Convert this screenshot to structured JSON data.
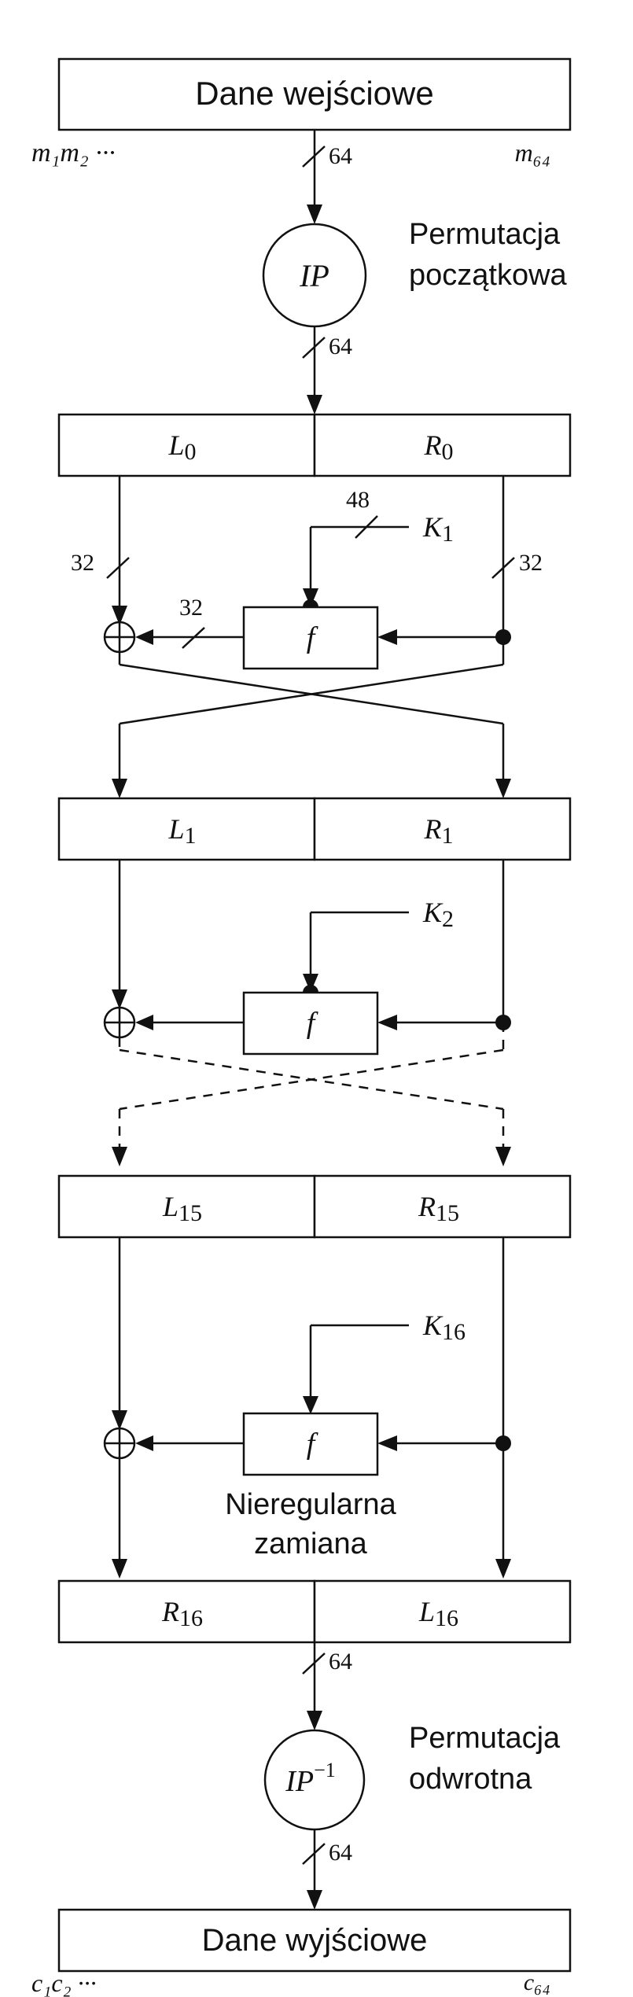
{
  "input_box": "Dane wejściowe",
  "output_box": "Dane wyjściowe",
  "input_bits_left": "m₁m₂ ···",
  "input_bits_right": "m₆₄",
  "output_bits_left": "c₁c₂ ···",
  "output_bits_right": "c₆₄",
  "ip_label": "IP",
  "ip_inv_label": "IP",
  "ip_inv_sup": "−1",
  "ip_caption": [
    "Permutacja",
    "początkowa"
  ],
  "ip_inv_caption": [
    "Permutacja",
    "odwrotna"
  ],
  "width_64": "64",
  "width_48": "48",
  "width_32": "32",
  "function_label": "f",
  "swap_caption": [
    "Nieregularna",
    "zamiana"
  ],
  "rounds": [
    {
      "left": "L",
      "left_sub": "0",
      "right": "R",
      "right_sub": "0",
      "key": "K",
      "key_sub": "1"
    },
    {
      "left": "L",
      "left_sub": "1",
      "right": "R",
      "right_sub": "1",
      "key": "K",
      "key_sub": "2"
    },
    {
      "left": "L",
      "left_sub": "15",
      "right": "R",
      "right_sub": "15",
      "key": "K",
      "key_sub": "16"
    }
  ],
  "final_block": {
    "left": "R",
    "left_sub": "16",
    "right": "L",
    "right_sub": "16"
  }
}
